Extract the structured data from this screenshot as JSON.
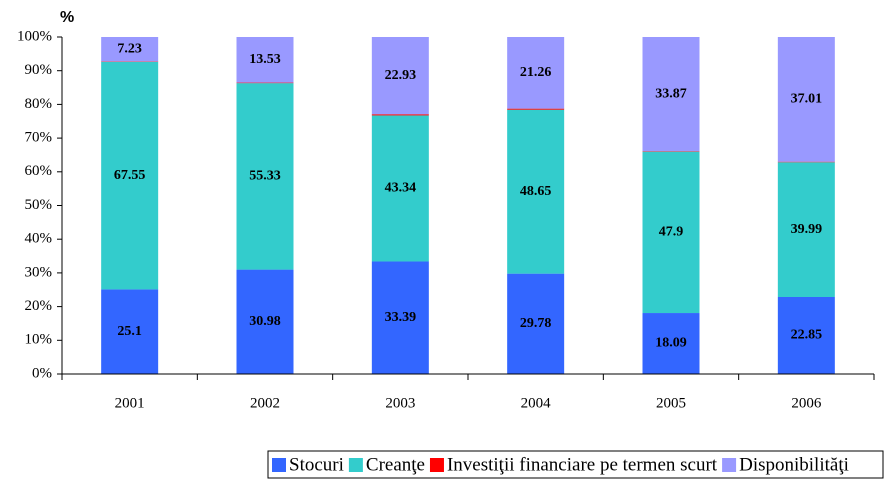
{
  "chart_data": {
    "type": "bar",
    "stacked": true,
    "y_axis_title": "%",
    "categories": [
      "2001",
      "2002",
      "2003",
      "2004",
      "2005",
      "2006"
    ],
    "series": [
      {
        "name": "Stocuri",
        "color": "#3366ff",
        "values": [
          25.1,
          30.98,
          33.39,
          29.78,
          18.09,
          22.85
        ]
      },
      {
        "name": "Creanţe",
        "color": "#33cccc",
        "values": [
          67.55,
          55.33,
          43.34,
          48.65,
          47.9,
          39.99
        ]
      },
      {
        "name": "Investiţii financiare pe termen scurt",
        "color": "#ff0000",
        "values": [
          0.12,
          0.16,
          0.34,
          0.31,
          0.14,
          0.15
        ]
      },
      {
        "name": "Disponibilităţi",
        "color": "#9999ff",
        "values": [
          7.23,
          13.53,
          22.93,
          21.26,
          33.87,
          37.01
        ]
      }
    ],
    "labeled_series": [
      0,
      1,
      3
    ],
    "ylim": [
      0,
      100
    ],
    "yticks": [
      {
        "value": 0,
        "label": "0%"
      },
      {
        "value": 10,
        "label": "10%"
      },
      {
        "value": 20,
        "label": "20%"
      },
      {
        "value": 30,
        "label": "30%"
      },
      {
        "value": 40,
        "label": "40%"
      },
      {
        "value": 50,
        "label": "50%"
      },
      {
        "value": 60,
        "label": "60%"
      },
      {
        "value": 70,
        "label": "70%"
      },
      {
        "value": 80,
        "label": "80%"
      },
      {
        "value": 90,
        "label": "90%"
      },
      {
        "value": 100,
        "label": "100%"
      }
    ],
    "legend": "bottom"
  }
}
